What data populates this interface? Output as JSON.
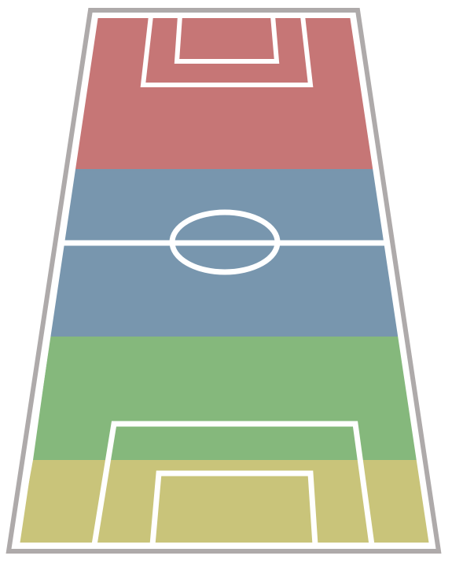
{
  "pitch": {
    "background": "#ffffff",
    "outline_color": "#aeaaaa",
    "line_color": "#ffffff",
    "zones": [
      {
        "id": "attack",
        "color": "#c67676"
      },
      {
        "id": "midfield",
        "color": "#7896ae"
      },
      {
        "id": "defense",
        "color": "#85b87c"
      },
      {
        "id": "goal-area",
        "color": "#c9c47a"
      }
    ]
  }
}
